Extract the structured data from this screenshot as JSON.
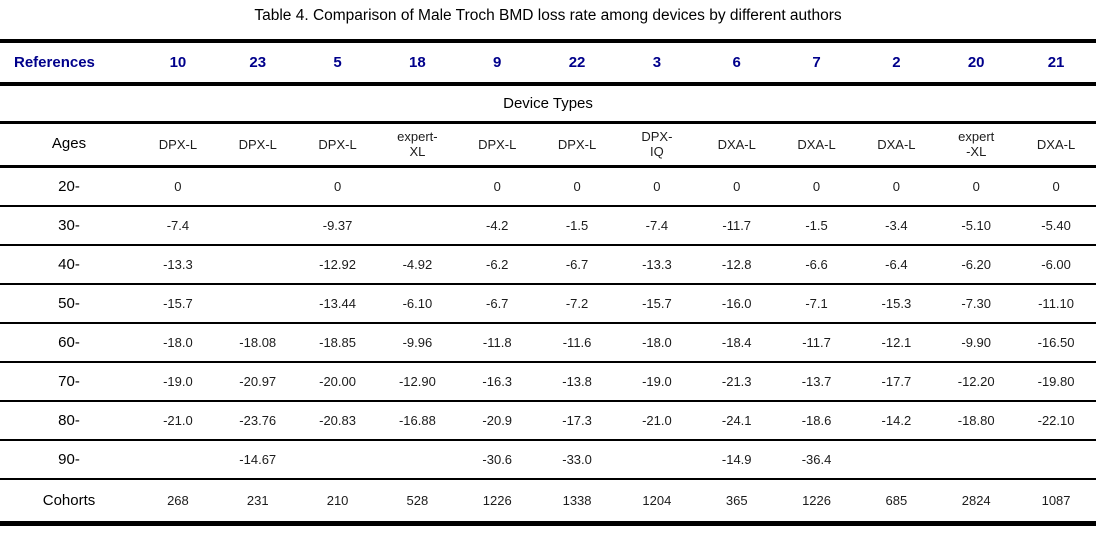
{
  "colors": {
    "reference_blue": "#00008B",
    "text": "#000000"
  },
  "table": {
    "title": "Table 4. Comparison of Male Troch BMD loss rate among devices by different authors",
    "references_label": "References",
    "references": [
      "10",
      "23",
      "5",
      "18",
      "9",
      "22",
      "3",
      "6",
      "7",
      "2",
      "20",
      "21"
    ],
    "device_types_header": "Device Types",
    "ages_label": "Ages",
    "devices": [
      "DPX-L",
      "DPX-L",
      "DPX-L",
      "expert-\nXL",
      "DPX-L",
      "DPX-L",
      "DPX-\nIQ",
      "DXA-L",
      "DXA-L",
      "DXA-L",
      "expert\n-XL",
      "DXA-L"
    ],
    "rows": [
      {
        "label": "20-",
        "values": [
          "0",
          "",
          "0",
          "",
          "0",
          "0",
          "0",
          "0",
          "0",
          "0",
          "0",
          "0"
        ]
      },
      {
        "label": "30-",
        "values": [
          "-7.4",
          "",
          "-9.37",
          "",
          "-4.2",
          "-1.5",
          "-7.4",
          "-11.7",
          "-1.5",
          "-3.4",
          "-5.10",
          "-5.40"
        ]
      },
      {
        "label": "40-",
        "values": [
          "-13.3",
          "",
          "-12.92",
          "-4.92",
          "-6.2",
          "-6.7",
          "-13.3",
          "-12.8",
          "-6.6",
          "-6.4",
          "-6.20",
          "-6.00"
        ]
      },
      {
        "label": "50-",
        "values": [
          "-15.7",
          "",
          "-13.44",
          "-6.10",
          "-6.7",
          "-7.2",
          "-15.7",
          "-16.0",
          "-7.1",
          "-15.3",
          "-7.30",
          "-11.10"
        ]
      },
      {
        "label": "60-",
        "values": [
          "-18.0",
          "-18.08",
          "-18.85",
          "-9.96",
          "-11.8",
          "-11.6",
          "-18.0",
          "-18.4",
          "-11.7",
          "-12.1",
          "-9.90",
          "-16.50"
        ]
      },
      {
        "label": "70-",
        "values": [
          "-19.0",
          "-20.97",
          "-20.00",
          "-12.90",
          "-16.3",
          "-13.8",
          "-19.0",
          "-21.3",
          "-13.7",
          "-17.7",
          "-12.20",
          "-19.80"
        ]
      },
      {
        "label": "80-",
        "values": [
          "-21.0",
          "-23.76",
          "-20.83",
          "-16.88",
          "-20.9",
          "-17.3",
          "-21.0",
          "-24.1",
          "-18.6",
          "-14.2",
          "-18.80",
          "-22.10"
        ]
      },
      {
        "label": "90-",
        "values": [
          "",
          "-14.67",
          "",
          "",
          "-30.6",
          "-33.0",
          "",
          "-14.9",
          "-36.4",
          "",
          "",
          ""
        ]
      }
    ],
    "cohorts_label": "Cohorts",
    "cohorts": [
      "268",
      "231",
      "210",
      "528",
      "1226",
      "1338",
      "1204",
      "365",
      "1226",
      "685",
      "2824",
      "1087"
    ]
  }
}
